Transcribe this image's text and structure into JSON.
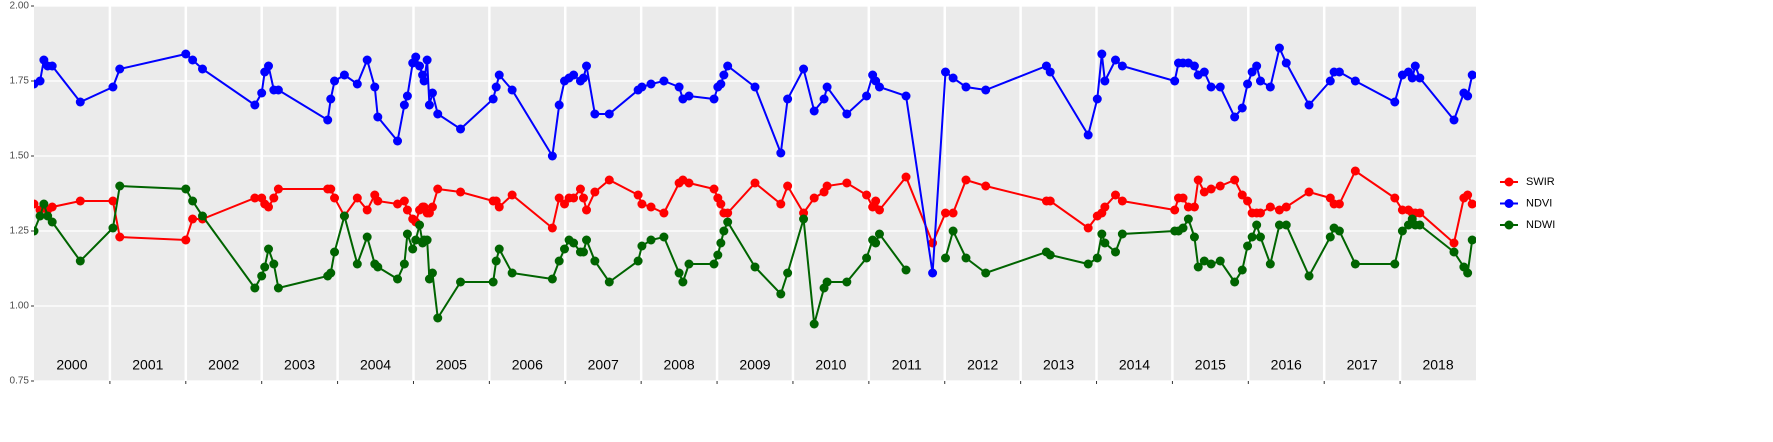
{
  "chart_data": {
    "type": "line",
    "x": [
      2000.0,
      2000.08,
      2000.13,
      2000.18,
      2000.24,
      2000.61,
      2001.04,
      2001.13,
      2002.0,
      2002.09,
      2002.22,
      2002.91,
      2003.0,
      2003.04,
      2003.09,
      2003.16,
      2003.22,
      2003.87,
      2003.91,
      2003.96,
      2004.09,
      2004.26,
      2004.39,
      2004.49,
      2004.53,
      2004.79,
      2004.88,
      2004.92,
      2004.99,
      2005.03,
      2005.08,
      2005.12,
      2005.14,
      2005.18,
      2005.21,
      2005.25,
      2005.32,
      2005.62,
      2006.05,
      2006.09,
      2006.13,
      2006.3,
      2006.83,
      2006.92,
      2006.99,
      2007.05,
      2007.11,
      2007.2,
      2007.24,
      2007.28,
      2007.39,
      2007.58,
      2007.96,
      2008.01,
      2008.13,
      2008.3,
      2008.5,
      2008.55,
      2008.63,
      2008.96,
      2009.01,
      2009.05,
      2009.09,
      2009.14,
      2009.5,
      2009.84,
      2009.93,
      2010.14,
      2010.28,
      2010.41,
      2010.45,
      2010.71,
      2010.97,
      2011.05,
      2011.09,
      2011.14,
      2011.49,
      2011.84,
      2012.01,
      2012.11,
      2012.28,
      2012.54,
      2013.34,
      2013.39,
      2013.89,
      2014.01,
      2014.07,
      2014.11,
      2014.25,
      2014.34,
      2015.03,
      2015.08,
      2015.14,
      2015.21,
      2015.29,
      2015.34,
      2015.42,
      2015.51,
      2015.63,
      2015.82,
      2015.92,
      2015.99,
      2016.05,
      2016.11,
      2016.16,
      2016.29,
      2016.41,
      2016.5,
      2016.8,
      2017.08,
      2017.13,
      2017.2,
      2017.41,
      2017.93,
      2018.03,
      2018.11,
      2018.16,
      2018.2,
      2018.26,
      2018.71,
      2018.84,
      2018.89,
      2018.95
    ],
    "series": [
      {
        "name": "SWIR",
        "color": "#ff0000",
        "values": [
          1.34,
          1.32,
          1.33,
          1.32,
          1.33,
          1.35,
          1.35,
          1.23,
          1.22,
          1.29,
          1.29,
          1.36,
          1.36,
          1.34,
          1.33,
          1.36,
          1.39,
          1.39,
          1.39,
          1.36,
          1.3,
          1.36,
          1.32,
          1.37,
          1.35,
          1.34,
          1.35,
          1.32,
          1.29,
          1.28,
          1.32,
          1.33,
          1.33,
          1.31,
          1.31,
          1.33,
          1.39,
          1.38,
          1.35,
          1.35,
          1.33,
          1.37,
          1.26,
          1.36,
          1.34,
          1.36,
          1.36,
          1.39,
          1.36,
          1.32,
          1.38,
          1.42,
          1.37,
          1.34,
          1.33,
          1.31,
          1.41,
          1.42,
          1.41,
          1.39,
          1.36,
          1.34,
          1.31,
          1.31,
          1.41,
          1.34,
          1.4,
          1.31,
          1.36,
          1.38,
          1.4,
          1.41,
          1.37,
          1.33,
          1.35,
          1.32,
          1.43,
          1.21,
          1.31,
          1.31,
          1.42,
          1.4,
          1.35,
          1.35,
          1.26,
          1.3,
          1.31,
          1.33,
          1.37,
          1.35,
          1.32,
          1.36,
          1.36,
          1.33,
          1.33,
          1.42,
          1.38,
          1.39,
          1.4,
          1.42,
          1.37,
          1.35,
          1.31,
          1.31,
          1.31,
          1.33,
          1.32,
          1.33,
          1.38,
          1.36,
          1.34,
          1.34,
          1.45,
          1.36,
          1.32,
          1.32,
          1.31,
          1.31,
          1.31,
          1.21,
          1.36,
          1.37,
          1.34
        ]
      },
      {
        "name": "NDVI",
        "color": "#0000ff",
        "values": [
          1.74,
          1.75,
          1.82,
          1.8,
          1.8,
          1.68,
          1.73,
          1.79,
          1.84,
          1.82,
          1.79,
          1.67,
          1.71,
          1.78,
          1.8,
          1.72,
          1.72,
          1.62,
          1.69,
          1.75,
          1.77,
          1.74,
          1.82,
          1.73,
          1.63,
          1.55,
          1.67,
          1.7,
          1.81,
          1.83,
          1.8,
          1.77,
          1.75,
          1.82,
          1.67,
          1.71,
          1.64,
          1.59,
          1.69,
          1.73,
          1.77,
          1.72,
          1.5,
          1.67,
          1.75,
          1.76,
          1.77,
          1.75,
          1.76,
          1.8,
          1.64,
          1.64,
          1.72,
          1.73,
          1.74,
          1.75,
          1.73,
          1.69,
          1.7,
          1.69,
          1.73,
          1.74,
          1.77,
          1.8,
          1.73,
          1.51,
          1.69,
          1.79,
          1.65,
          1.69,
          1.73,
          1.64,
          1.7,
          1.77,
          1.75,
          1.73,
          1.7,
          1.11,
          1.78,
          1.76,
          1.73,
          1.72,
          1.8,
          1.78,
          1.57,
          1.69,
          1.84,
          1.75,
          1.82,
          1.8,
          1.75,
          1.81,
          1.81,
          1.81,
          1.8,
          1.77,
          1.78,
          1.73,
          1.73,
          1.63,
          1.66,
          1.74,
          1.78,
          1.8,
          1.75,
          1.73,
          1.86,
          1.81,
          1.67,
          1.75,
          1.78,
          1.78,
          1.75,
          1.68,
          1.77,
          1.78,
          1.76,
          1.8,
          1.76,
          1.62,
          1.71,
          1.7,
          1.77
        ]
      },
      {
        "name": "NDWI",
        "color": "#006400",
        "values": [
          1.25,
          1.3,
          1.34,
          1.3,
          1.28,
          1.15,
          1.26,
          1.4,
          1.39,
          1.35,
          1.3,
          1.06,
          1.1,
          1.13,
          1.19,
          1.14,
          1.06,
          1.1,
          1.11,
          1.18,
          1.3,
          1.14,
          1.23,
          1.14,
          1.13,
          1.09,
          1.14,
          1.24,
          1.19,
          1.22,
          1.27,
          1.21,
          1.22,
          1.22,
          1.09,
          1.11,
          0.96,
          1.08,
          1.08,
          1.15,
          1.19,
          1.11,
          1.09,
          1.15,
          1.19,
          1.22,
          1.21,
          1.18,
          1.18,
          1.22,
          1.15,
          1.08,
          1.15,
          1.2,
          1.22,
          1.23,
          1.11,
          1.08,
          1.14,
          1.14,
          1.17,
          1.21,
          1.25,
          1.28,
          1.13,
          1.04,
          1.11,
          1.29,
          0.94,
          1.06,
          1.08,
          1.08,
          1.16,
          1.22,
          1.21,
          1.24,
          1.12,
          null,
          1.16,
          1.25,
          1.16,
          1.11,
          1.18,
          1.17,
          1.14,
          1.16,
          1.24,
          1.21,
          1.18,
          1.24,
          1.25,
          1.25,
          1.26,
          1.29,
          1.23,
          1.13,
          1.15,
          1.14,
          1.15,
          1.08,
          1.12,
          1.2,
          1.23,
          1.27,
          1.23,
          1.14,
          1.27,
          1.27,
          1.1,
          1.23,
          1.26,
          1.25,
          1.14,
          1.14,
          1.25,
          1.27,
          1.29,
          1.27,
          1.27,
          1.18,
          1.13,
          1.11,
          1.22
        ]
      }
    ],
    "xlim": [
      2000,
      2019
    ],
    "ylim": [
      0.75,
      2.0
    ],
    "yticks": [
      {
        "value": 0.75,
        "label": "0.75"
      },
      {
        "value": 1.0,
        "label": "1.00"
      },
      {
        "value": 1.25,
        "label": "1.25"
      },
      {
        "value": 1.5,
        "label": "1.50"
      },
      {
        "value": 1.75,
        "label": "1.75"
      },
      {
        "value": 2.0,
        "label": "2.00"
      }
    ],
    "vlines": [
      2001,
      2002,
      2003,
      2004,
      2005,
      2006,
      2007,
      2008,
      2009,
      2010,
      2011,
      2012,
      2013,
      2014,
      2015,
      2016,
      2017,
      2018
    ],
    "year_labels": [
      {
        "value": 2000.5,
        "label": "2000"
      },
      {
        "value": 2001.5,
        "label": "2001"
      },
      {
        "value": 2002.5,
        "label": "2002"
      },
      {
        "value": 2003.5,
        "label": "2003"
      },
      {
        "value": 2004.5,
        "label": "2004"
      },
      {
        "value": 2005.5,
        "label": "2005"
      },
      {
        "value": 2006.5,
        "label": "2006"
      },
      {
        "value": 2007.5,
        "label": "2007"
      },
      {
        "value": 2008.5,
        "label": "2008"
      },
      {
        "value": 2009.5,
        "label": "2009"
      },
      {
        "value": 2010.5,
        "label": "2010"
      },
      {
        "value": 2011.5,
        "label": "2011"
      },
      {
        "value": 2012.5,
        "label": "2012"
      },
      {
        "value": 2013.5,
        "label": "2013"
      },
      {
        "value": 2014.5,
        "label": "2014"
      },
      {
        "value": 2015.5,
        "label": "2015"
      },
      {
        "value": 2016.5,
        "label": "2016"
      },
      {
        "value": 2017.5,
        "label": "2017"
      },
      {
        "value": 2018.5,
        "label": "2018"
      }
    ],
    "grid": true,
    "legend": "right"
  }
}
